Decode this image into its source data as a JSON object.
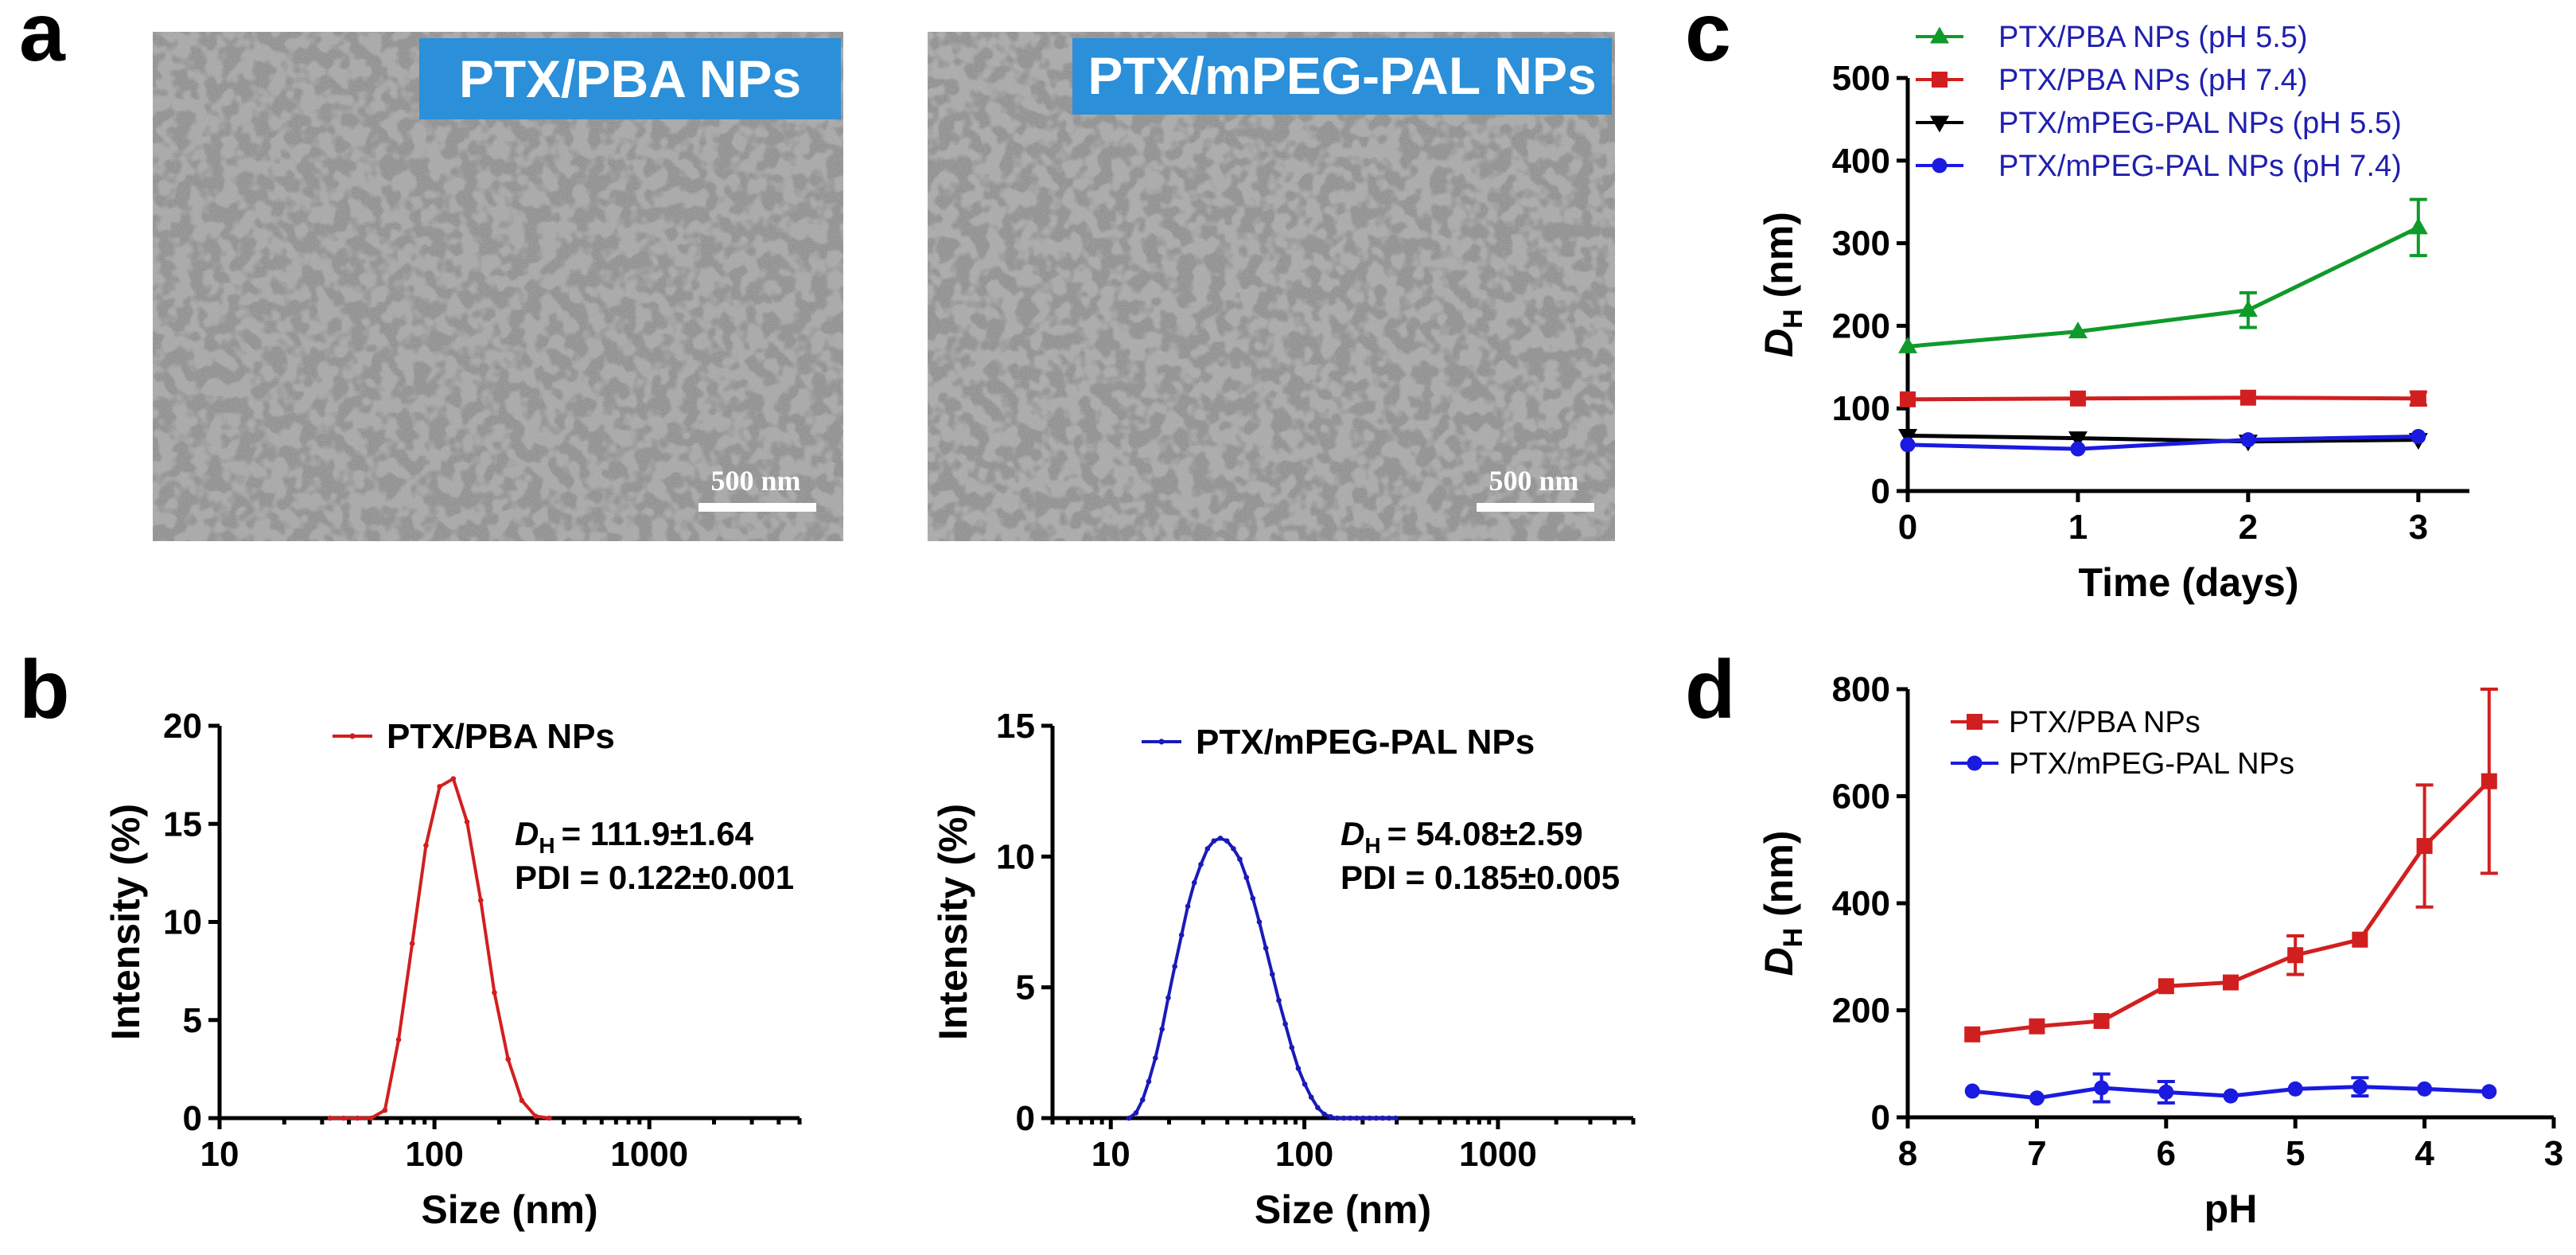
{
  "panels": {
    "a": "a",
    "b": "b",
    "c": "c",
    "d": "d"
  },
  "tem_images": [
    {
      "label": "PTX/PBA NPs",
      "scale_bar": "500 nm",
      "badge_color": "#2b8fd9"
    },
    {
      "label": "PTX/mPEG-PAL NPs",
      "scale_bar": "500 nm",
      "badge_color": "#2b8fd9"
    }
  ],
  "annotations_b": {
    "left": {
      "dh_symbol": "D",
      "dh_sub": "H",
      "dh_value": "= 111.9±1.64",
      "pdi": "PDI = 0.122±0.001"
    },
    "right": {
      "dh_symbol": "D",
      "dh_sub": "H",
      "dh_value": "= 54.08±2.59",
      "pdi": "PDI = 0.185±0.005"
    }
  },
  "chart_data": [
    {
      "id": "b-left",
      "type": "line",
      "title": "",
      "legend": [
        "PTX/PBA NPs"
      ],
      "xlabel": "Size (nm)",
      "ylabel": "Intensity (%)",
      "xscale": "log",
      "xlim": [
        10,
        5000
      ],
      "ylim": [
        0,
        20
      ],
      "xticks": [
        10,
        100,
        1000
      ],
      "xtick_labels": [
        "10",
        "100",
        "1000"
      ],
      "yticks": [
        0,
        5,
        10,
        15,
        20
      ],
      "ytick_labels": [
        "0",
        "5",
        "10",
        "15",
        "20"
      ],
      "color": "#d11f1f",
      "series": [
        {
          "name": "PTX/PBA NPs",
          "x": [
            32.7,
            37.8,
            43.8,
            50.7,
            58.8,
            68.1,
            78.8,
            91.3,
            105.7,
            122.4,
            141.8,
            164.2,
            190.1,
            220.2,
            255.0,
            295.3,
            342.0
          ],
          "y": [
            0,
            0,
            0,
            0,
            0.4,
            4.0,
            8.9,
            13.9,
            16.9,
            17.3,
            15.1,
            11.1,
            6.4,
            3.0,
            0.9,
            0.1,
            0
          ]
        }
      ]
    },
    {
      "id": "b-right",
      "type": "line",
      "title": "",
      "legend": [
        "PTX/mPEG-PAL NPs"
      ],
      "xlabel": "Size (nm)",
      "ylabel": "Intensity (%)",
      "xscale": "log",
      "xlim": [
        5,
        5000
      ],
      "ylim": [
        0,
        15
      ],
      "xticks": [
        10,
        100,
        1000
      ],
      "xtick_labels": [
        "10",
        "100",
        "1000"
      ],
      "yticks": [
        0,
        5,
        10,
        15
      ],
      "ytick_labels": [
        "0",
        "5",
        "10",
        "15"
      ],
      "color": "#1a1ab8",
      "series": [
        {
          "name": "PTX/mPEG-PAL NPs",
          "x": [
            12.4,
            13.5,
            14.6,
            15.7,
            17.0,
            18.4,
            19.8,
            21.4,
            23.2,
            25.0,
            27.0,
            29.2,
            31.6,
            34.1,
            36.8,
            39.8,
            43.0,
            46.4,
            50.2,
            54.2,
            58.5,
            63.2,
            68.3,
            73.8,
            79.7,
            86.1,
            93.0,
            100.5,
            108.5,
            117.2,
            126.7,
            136.8,
            147.8,
            159.7,
            172.5,
            186.3,
            201.3,
            217.4,
            234.9,
            253.7,
            274.1,
            296.1
          ],
          "y": [
            0,
            0.2,
            0.7,
            1.4,
            2.3,
            3.4,
            4.6,
            5.8,
            7.0,
            8.1,
            9.0,
            9.7,
            10.3,
            10.6,
            10.7,
            10.6,
            10.3,
            9.9,
            9.2,
            8.4,
            7.5,
            6.5,
            5.5,
            4.5,
            3.6,
            2.7,
            1.9,
            1.3,
            0.8,
            0.4,
            0.15,
            0.05,
            0,
            0,
            0,
            0,
            0,
            0,
            0,
            0,
            0,
            0
          ]
        }
      ]
    },
    {
      "id": "c",
      "type": "line",
      "title": "",
      "xlabel": "Time (days)",
      "ylabel": {
        "symbol": "D",
        "sub": "H",
        "unit": " (nm)"
      },
      "xlim": [
        0,
        3.3
      ],
      "ylim": [
        0,
        500
      ],
      "xticks": [
        0,
        1,
        2,
        3
      ],
      "xtick_labels": [
        "0",
        "1",
        "2",
        "3"
      ],
      "yticks": [
        0,
        100,
        200,
        300,
        400,
        500
      ],
      "ytick_labels": [
        "0",
        "100",
        "200",
        "300",
        "400",
        "500"
      ],
      "legend_position": "top",
      "series": [
        {
          "name": "PTX/PBA NPs (pH 5.5)",
          "color": "#0f9a2a",
          "marker": "triangle-up",
          "x": [
            0,
            1,
            2,
            3
          ],
          "y": [
            175,
            193,
            219,
            319
          ],
          "err": [
            0,
            0,
            21,
            34
          ]
        },
        {
          "name": "PTX/PBA NPs (pH 7.4)",
          "color": "#d11f1f",
          "marker": "square",
          "x": [
            0,
            1,
            2,
            3
          ],
          "y": [
            111,
            112,
            113,
            112
          ],
          "err": [
            0,
            0,
            0,
            8
          ]
        },
        {
          "name": "PTX/mPEG-PAL NPs (pH 5.5)",
          "color": "#000000",
          "marker": "triangle-down",
          "x": [
            0,
            1,
            2,
            3
          ],
          "y": [
            67,
            64,
            60,
            62
          ],
          "err": [
            0,
            0,
            0,
            0
          ]
        },
        {
          "name": "PTX/mPEG-PAL NPs (pH 7.4)",
          "color": "#1a1ae0",
          "marker": "circle",
          "x": [
            0,
            1,
            2,
            3
          ],
          "y": [
            56,
            51,
            62,
            66
          ],
          "err": [
            0,
            0,
            0,
            0
          ]
        }
      ],
      "legend_text_color": "#1f1fb0"
    },
    {
      "id": "d",
      "type": "line",
      "title": "",
      "xlabel": "pH",
      "ylabel": {
        "symbol": "D",
        "sub": "H",
        "unit": " (nm)"
      },
      "xlim": [
        8,
        3
      ],
      "ylim": [
        0,
        800
      ],
      "x_reversed": true,
      "xticks": [
        8,
        7,
        6,
        5,
        4,
        3
      ],
      "xtick_labels": [
        "8",
        "7",
        "6",
        "5",
        "4",
        "3"
      ],
      "yticks": [
        0,
        200,
        400,
        600,
        800
      ],
      "ytick_labels": [
        "0",
        "200",
        "400",
        "600",
        "800"
      ],
      "legend_position": "top-left",
      "series": [
        {
          "name": "PTX/PBA NPs",
          "color": "#d11f1f",
          "marker": "square",
          "x": [
            7.5,
            7.0,
            6.5,
            6.0,
            5.5,
            5.0,
            4.5,
            4.0,
            3.5
          ],
          "y": [
            155,
            170,
            180,
            245,
            252,
            303,
            332,
            507,
            628
          ],
          "err": [
            0,
            0,
            0,
            0,
            0,
            36,
            0,
            114,
            172
          ]
        },
        {
          "name": "PTX/mPEG-PAL NPs",
          "color": "#1a1ae0",
          "marker": "circle",
          "x": [
            7.5,
            7.0,
            6.5,
            6.0,
            5.5,
            5.0,
            4.5,
            4.0,
            3.5
          ],
          "y": [
            49,
            36,
            55,
            47,
            40,
            53,
            57,
            53,
            48
          ],
          "err": [
            0,
            0,
            26,
            20,
            0,
            0,
            17,
            0,
            0
          ]
        }
      ],
      "legend_text_color": "#000000"
    }
  ]
}
